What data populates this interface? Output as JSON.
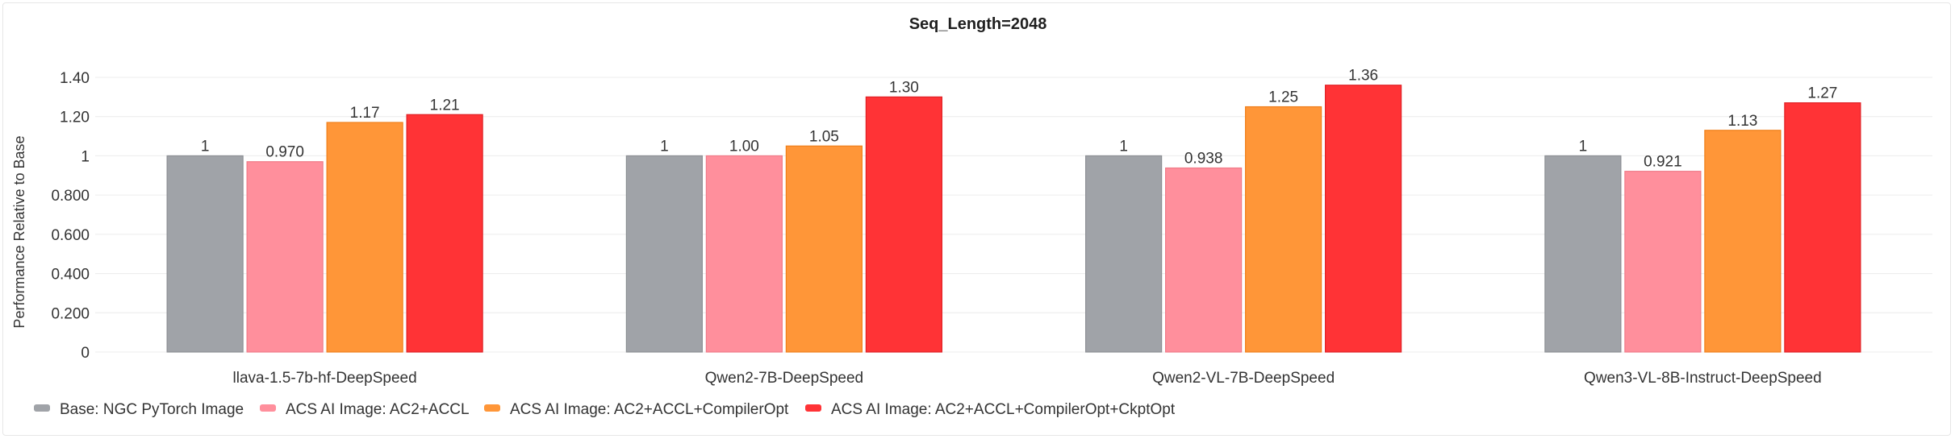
{
  "chart_data": {
    "type": "bar",
    "title": "Seq_Length=2048",
    "ylabel": "Performance Relative to Base",
    "xlabel": "",
    "ylim": [
      0,
      1.4
    ],
    "yticks": [
      {
        "value": 0,
        "label": "0"
      },
      {
        "value": 0.2,
        "label": "0.200"
      },
      {
        "value": 0.4,
        "label": "0.400"
      },
      {
        "value": 0.6,
        "label": "0.600"
      },
      {
        "value": 0.8,
        "label": "0.800"
      },
      {
        "value": 1.0,
        "label": "1"
      },
      {
        "value": 1.2,
        "label": "1.20"
      },
      {
        "value": 1.4,
        "label": "1.40"
      }
    ],
    "grid": true,
    "legend_position": "bottom-left",
    "categories": [
      "llava-1.5-7b-hf-DeepSpeed",
      "Qwen2-7B-DeepSpeed",
      "Qwen2-VL-7B-DeepSpeed",
      "Qwen3-VL-8B-Instruct-DeepSpeed"
    ],
    "series": [
      {
        "name": "Base: NGC PyTorch Image",
        "color": "#a0a3a8",
        "border": "#8c8f94",
        "values": [
          1,
          1,
          1,
          1
        ],
        "labels": [
          "1",
          "1",
          "1",
          "1"
        ]
      },
      {
        "name": "ACS AI Image: AC2+ACCL",
        "color": "#ff8f9c",
        "border": "#f07a88",
        "values": [
          0.97,
          1.0,
          0.938,
          0.921
        ],
        "labels": [
          "0.970",
          "1.00",
          "0.938",
          "0.921"
        ]
      },
      {
        "name": "ACS AI Image: AC2+ACCL+CompilerOpt",
        "color": "#ff9638",
        "border": "#f07f1a",
        "values": [
          1.17,
          1.05,
          1.25,
          1.13
        ],
        "labels": [
          "1.17",
          "1.05",
          "1.25",
          "1.13"
        ]
      },
      {
        "name": "ACS AI Image: AC2+ACCL+CompilerOpt+CkptOpt",
        "color": "#ff3336",
        "border": "#e01f23",
        "values": [
          1.21,
          1.3,
          1.36,
          1.27
        ],
        "labels": [
          "1.21",
          "1.30",
          "1.36",
          "1.27"
        ]
      }
    ]
  }
}
